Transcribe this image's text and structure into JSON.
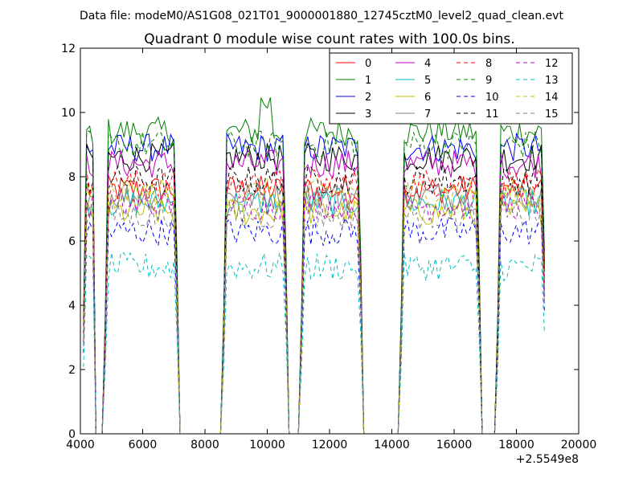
{
  "figure": {
    "suptitle": "Data file: modeM0/AS1G08_021T01_9000001880_12745cztM0_level2_quad_clean.evt"
  },
  "chart_data": {
    "type": "line",
    "title": "Quadrant 0 module wise count rates with 100.0s bins.",
    "xlabel": "",
    "ylabel": "",
    "x_offset_label": "+2.5549e8",
    "xlim": [
      4000,
      20000
    ],
    "ylim": [
      0,
      12
    ],
    "x_ticks": [
      4000,
      6000,
      8000,
      10000,
      12000,
      14000,
      16000,
      18000,
      20000
    ],
    "y_ticks": [
      0,
      2,
      4,
      6,
      8,
      10,
      12
    ],
    "grid": false,
    "legend": {
      "placement": "top-right",
      "columns": 4
    },
    "series": [
      {
        "name": "0",
        "color": "#ff0000",
        "dash": "solid",
        "base": 7.6
      },
      {
        "name": "1",
        "color": "#007f00",
        "dash": "solid",
        "base": 9.4
      },
      {
        "name": "2",
        "color": "#0000ff",
        "dash": "solid",
        "base": 8.9
      },
      {
        "name": "3",
        "color": "#000000",
        "dash": "solid",
        "base": 8.6
      },
      {
        "name": "4",
        "color": "#bf00bf",
        "dash": "solid",
        "base": 8.4
      },
      {
        "name": "5",
        "color": "#00bfbf",
        "dash": "solid",
        "base": 7.2
      },
      {
        "name": "6",
        "color": "#bfbf00",
        "dash": "solid",
        "base": 6.9
      },
      {
        "name": "7",
        "color": "#7f7f7f",
        "dash": "solid",
        "base": 7.4
      },
      {
        "name": "8",
        "color": "#ff0000",
        "dash": "dashed",
        "base": 7.8
      },
      {
        "name": "9",
        "color": "#007f00",
        "dash": "dashed",
        "base": 9.0
      },
      {
        "name": "10",
        "color": "#0000ff",
        "dash": "dashed",
        "base": 6.3
      },
      {
        "name": "11",
        "color": "#000000",
        "dash": "dashed",
        "base": 7.9
      },
      {
        "name": "12",
        "color": "#bf00bf",
        "dash": "dashed",
        "base": 7.1
      },
      {
        "name": "13",
        "color": "#00bfbf",
        "dash": "dashed",
        "base": 5.2
      },
      {
        "name": "14",
        "color": "#bfbf00",
        "dash": "dashed",
        "base": 7.5
      },
      {
        "name": "15",
        "color": "#7f7f7f",
        "dash": "dashed",
        "base": 6.8
      }
    ],
    "active_segments": [
      {
        "start": 4100,
        "end": 4700,
        "note": "rise then drop"
      },
      {
        "start": 4800,
        "end": 7100
      },
      {
        "start": 8600,
        "end": 10600
      },
      {
        "start": 11100,
        "end": 13000
      },
      {
        "start": 14300,
        "end": 16800
      },
      {
        "start": 17400,
        "end": 18900
      }
    ],
    "gaps_zero": [
      [
        7200,
        8400
      ],
      [
        13100,
        14300
      ]
    ]
  }
}
